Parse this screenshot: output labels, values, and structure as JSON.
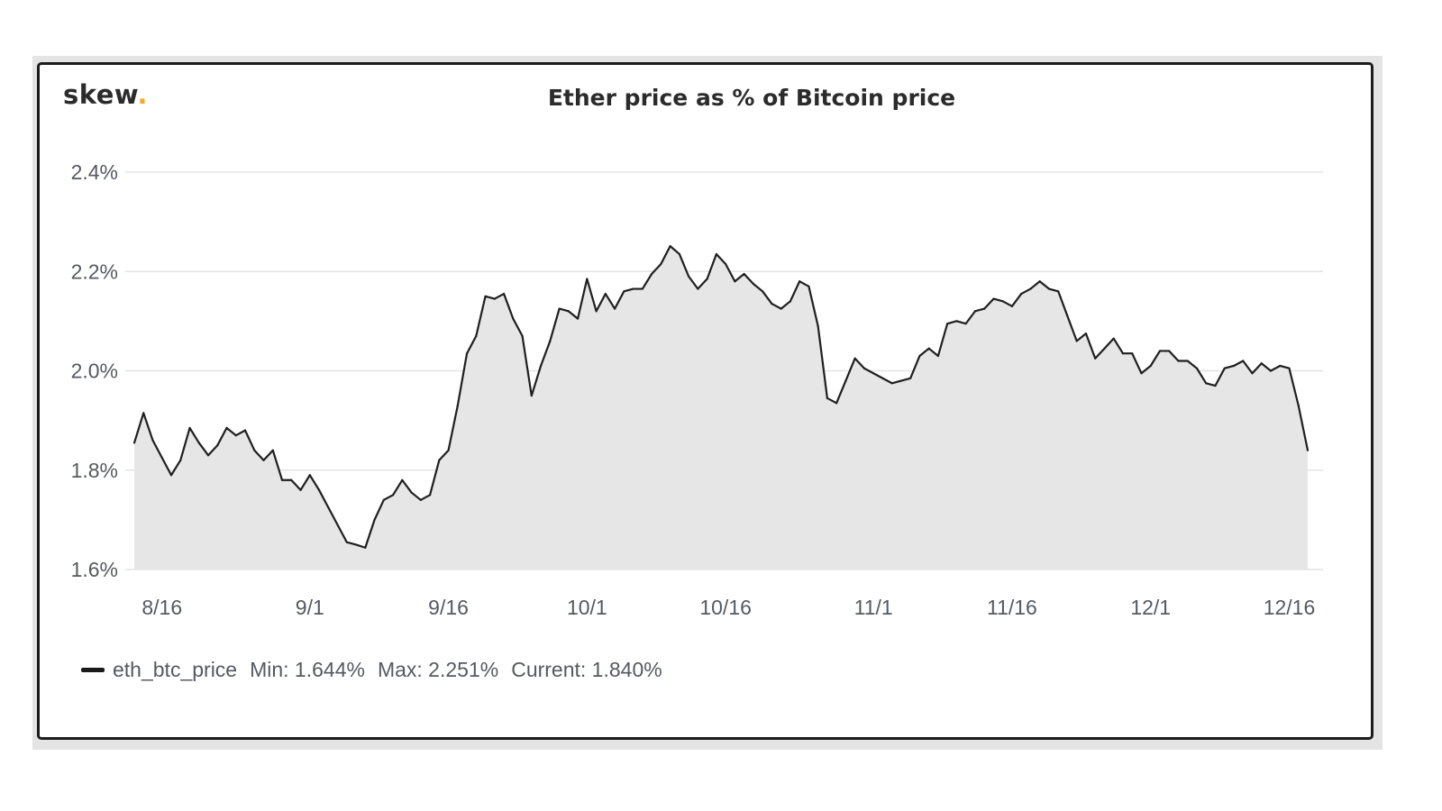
{
  "logo": {
    "text": "skew",
    "dot": "."
  },
  "colors": {
    "line": "#1f1f1f",
    "fill": "#e6e6e6",
    "grid": "#e3e3e3",
    "logo_dot": "#f4a72b",
    "text": "#555a60"
  },
  "legend": {
    "series_name": "eth_btc_price",
    "min_text": "Min: 1.644%",
    "max_text": "Max: 2.251%",
    "current_text": "Current: 1.840%"
  },
  "chart_data": {
    "type": "area",
    "title": "Ether price as % of Bitcoin price",
    "xlabel": "",
    "ylabel": "",
    "ylim": [
      1.6,
      2.4
    ],
    "yticks": [
      {
        "value": 1.6,
        "label": "1.6%"
      },
      {
        "value": 1.8,
        "label": "1.8%"
      },
      {
        "value": 2.0,
        "label": "2.0%"
      },
      {
        "value": 2.2,
        "label": "2.2%"
      },
      {
        "value": 2.4,
        "label": "2.4%"
      }
    ],
    "xticks": [
      {
        "date": "2019-08-16",
        "label": "8/16"
      },
      {
        "date": "2019-09-01",
        "label": "9/1"
      },
      {
        "date": "2019-09-16",
        "label": "9/16"
      },
      {
        "date": "2019-10-01",
        "label": "10/1"
      },
      {
        "date": "2019-10-16",
        "label": "10/16"
      },
      {
        "date": "2019-11-01",
        "label": "11/1"
      },
      {
        "date": "2019-11-16",
        "label": "11/16"
      },
      {
        "date": "2019-12-01",
        "label": "12/1"
      },
      {
        "date": "2019-12-16",
        "label": "12/16"
      }
    ],
    "xlim": [
      "2019-08-13",
      "2019-12-18"
    ],
    "grid": true,
    "legend_position": "bottom-left",
    "series": [
      {
        "name": "eth_btc_price",
        "points": [
          [
            "2019-08-13",
            1.855
          ],
          [
            "2019-08-14",
            1.915
          ],
          [
            "2019-08-15",
            1.86
          ],
          [
            "2019-08-16",
            1.825
          ],
          [
            "2019-08-17",
            1.79
          ],
          [
            "2019-08-18",
            1.82
          ],
          [
            "2019-08-19",
            1.885
          ],
          [
            "2019-08-20",
            1.855
          ],
          [
            "2019-08-21",
            1.83
          ],
          [
            "2019-08-22",
            1.85
          ],
          [
            "2019-08-23",
            1.885
          ],
          [
            "2019-08-24",
            1.87
          ],
          [
            "2019-08-25",
            1.88
          ],
          [
            "2019-08-26",
            1.84
          ],
          [
            "2019-08-27",
            1.82
          ],
          [
            "2019-08-28",
            1.84
          ],
          [
            "2019-08-29",
            1.78
          ],
          [
            "2019-08-30",
            1.78
          ],
          [
            "2019-08-31",
            1.76
          ],
          [
            "2019-09-01",
            1.79
          ],
          [
            "2019-09-02",
            1.76
          ],
          [
            "2019-09-03",
            1.725
          ],
          [
            "2019-09-04",
            1.69
          ],
          [
            "2019-09-05",
            1.655
          ],
          [
            "2019-09-06",
            1.65
          ],
          [
            "2019-09-07",
            1.644
          ],
          [
            "2019-09-08",
            1.7
          ],
          [
            "2019-09-09",
            1.74
          ],
          [
            "2019-09-10",
            1.75
          ],
          [
            "2019-09-11",
            1.78
          ],
          [
            "2019-09-12",
            1.755
          ],
          [
            "2019-09-13",
            1.74
          ],
          [
            "2019-09-14",
            1.75
          ],
          [
            "2019-09-15",
            1.82
          ],
          [
            "2019-09-16",
            1.84
          ],
          [
            "2019-09-17",
            1.93
          ],
          [
            "2019-09-18",
            2.035
          ],
          [
            "2019-09-19",
            2.07
          ],
          [
            "2019-09-20",
            2.15
          ],
          [
            "2019-09-21",
            2.145
          ],
          [
            "2019-09-22",
            2.155
          ],
          [
            "2019-09-23",
            2.105
          ],
          [
            "2019-09-24",
            2.07
          ],
          [
            "2019-09-25",
            1.95
          ],
          [
            "2019-09-26",
            2.01
          ],
          [
            "2019-09-27",
            2.06
          ],
          [
            "2019-09-28",
            2.125
          ],
          [
            "2019-09-29",
            2.12
          ],
          [
            "2019-09-30",
            2.105
          ],
          [
            "2019-10-01",
            2.185
          ],
          [
            "2019-10-02",
            2.12
          ],
          [
            "2019-10-03",
            2.155
          ],
          [
            "2019-10-04",
            2.125
          ],
          [
            "2019-10-05",
            2.16
          ],
          [
            "2019-10-06",
            2.165
          ],
          [
            "2019-10-07",
            2.165
          ],
          [
            "2019-10-08",
            2.195
          ],
          [
            "2019-10-09",
            2.215
          ],
          [
            "2019-10-10",
            2.251
          ],
          [
            "2019-10-11",
            2.235
          ],
          [
            "2019-10-12",
            2.19
          ],
          [
            "2019-10-13",
            2.165
          ],
          [
            "2019-10-14",
            2.185
          ],
          [
            "2019-10-15",
            2.235
          ],
          [
            "2019-10-16",
            2.215
          ],
          [
            "2019-10-17",
            2.18
          ],
          [
            "2019-10-18",
            2.195
          ],
          [
            "2019-10-19",
            2.175
          ],
          [
            "2019-10-20",
            2.16
          ],
          [
            "2019-10-21",
            2.135
          ],
          [
            "2019-10-22",
            2.125
          ],
          [
            "2019-10-23",
            2.14
          ],
          [
            "2019-10-24",
            2.18
          ],
          [
            "2019-10-25",
            2.17
          ],
          [
            "2019-10-26",
            2.09
          ],
          [
            "2019-10-27",
            1.945
          ],
          [
            "2019-10-28",
            1.935
          ],
          [
            "2019-10-29",
            1.98
          ],
          [
            "2019-10-30",
            2.025
          ],
          [
            "2019-10-31",
            2.005
          ],
          [
            "2019-11-01",
            1.995
          ],
          [
            "2019-11-02",
            1.985
          ],
          [
            "2019-11-03",
            1.975
          ],
          [
            "2019-11-04",
            1.98
          ],
          [
            "2019-11-05",
            1.985
          ],
          [
            "2019-11-06",
            2.03
          ],
          [
            "2019-11-07",
            2.045
          ],
          [
            "2019-11-08",
            2.03
          ],
          [
            "2019-11-09",
            2.095
          ],
          [
            "2019-11-10",
            2.1
          ],
          [
            "2019-11-11",
            2.095
          ],
          [
            "2019-11-12",
            2.12
          ],
          [
            "2019-11-13",
            2.125
          ],
          [
            "2019-11-14",
            2.145
          ],
          [
            "2019-11-15",
            2.14
          ],
          [
            "2019-11-16",
            2.13
          ],
          [
            "2019-11-17",
            2.155
          ],
          [
            "2019-11-18",
            2.165
          ],
          [
            "2019-11-19",
            2.18
          ],
          [
            "2019-11-20",
            2.165
          ],
          [
            "2019-11-21",
            2.16
          ],
          [
            "2019-11-22",
            2.11
          ],
          [
            "2019-11-23",
            2.06
          ],
          [
            "2019-11-24",
            2.075
          ],
          [
            "2019-11-25",
            2.025
          ],
          [
            "2019-11-26",
            2.045
          ],
          [
            "2019-11-27",
            2.065
          ],
          [
            "2019-11-28",
            2.035
          ],
          [
            "2019-11-29",
            2.035
          ],
          [
            "2019-11-30",
            1.995
          ],
          [
            "2019-12-01",
            2.01
          ],
          [
            "2019-12-02",
            2.04
          ],
          [
            "2019-12-03",
            2.04
          ],
          [
            "2019-12-04",
            2.02
          ],
          [
            "2019-12-05",
            2.02
          ],
          [
            "2019-12-06",
            2.005
          ],
          [
            "2019-12-07",
            1.975
          ],
          [
            "2019-12-08",
            1.97
          ],
          [
            "2019-12-09",
            2.005
          ],
          [
            "2019-12-10",
            2.01
          ],
          [
            "2019-12-11",
            2.02
          ],
          [
            "2019-12-12",
            1.995
          ],
          [
            "2019-12-13",
            2.015
          ],
          [
            "2019-12-14",
            2.0
          ],
          [
            "2019-12-15",
            2.01
          ],
          [
            "2019-12-16",
            2.005
          ],
          [
            "2019-12-17",
            1.93
          ],
          [
            "2019-12-18",
            1.84
          ]
        ]
      }
    ]
  }
}
